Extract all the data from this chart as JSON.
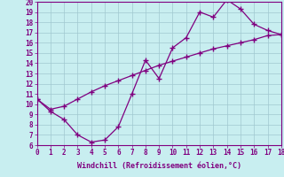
{
  "xlabel": "Windchill (Refroidissement éolien,°C)",
  "background_color": "#c8eef0",
  "line_color": "#800080",
  "line1_x": [
    0,
    1,
    2,
    3,
    4,
    5,
    6,
    7,
    8,
    9,
    10,
    11,
    12,
    13,
    14,
    15,
    16,
    17,
    18
  ],
  "line1_y": [
    10.5,
    9.3,
    8.5,
    7.0,
    6.3,
    6.5,
    7.8,
    11.0,
    14.3,
    12.5,
    15.5,
    16.5,
    19.0,
    18.5,
    20.2,
    19.3,
    17.8,
    17.2,
    16.8
  ],
  "line2_x": [
    0,
    1,
    2,
    3,
    4,
    5,
    6,
    7,
    8,
    9,
    10,
    11,
    12,
    13,
    14,
    15,
    16,
    17,
    18
  ],
  "line2_y": [
    10.5,
    9.5,
    9.8,
    10.5,
    11.2,
    11.8,
    12.3,
    12.8,
    13.3,
    13.8,
    14.2,
    14.6,
    15.0,
    15.4,
    15.7,
    16.0,
    16.3,
    16.7,
    16.8
  ],
  "xlim": [
    0,
    18
  ],
  "ylim": [
    6,
    20
  ],
  "yticks": [
    6,
    7,
    8,
    9,
    10,
    11,
    12,
    13,
    14,
    15,
    16,
    17,
    18,
    19,
    20
  ],
  "xticks": [
    0,
    1,
    2,
    3,
    4,
    5,
    6,
    7,
    8,
    9,
    10,
    11,
    12,
    13,
    14,
    15,
    16,
    17,
    18
  ],
  "grid_color": "#a0c8d0",
  "marker": "+",
  "markersize": 4,
  "linewidth": 0.9,
  "tick_labelsize": 5.5,
  "xlabel_fontsize": 6.0
}
